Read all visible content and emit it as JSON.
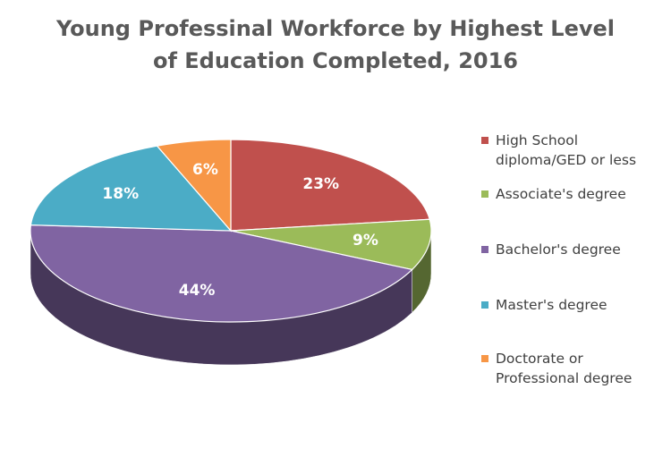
{
  "chart_data": {
    "type": "pie",
    "title": "Young Professinal Workforce by Highest Level of Education Completed, 2016",
    "categories": [
      "High School diploma/GED or less",
      "Associate's degree",
      "Bachelor's degree",
      "Master's degree",
      "Doctorate or Professional degree"
    ],
    "values": [
      23,
      9,
      44,
      18,
      6
    ],
    "value_labels": [
      "23%",
      "9%",
      "44%",
      "18%",
      "6%"
    ],
    "colors": [
      "#c0504d",
      "#9bbb59",
      "#8064a2",
      "#4bacc6",
      "#f79646"
    ],
    "legend": "right"
  }
}
